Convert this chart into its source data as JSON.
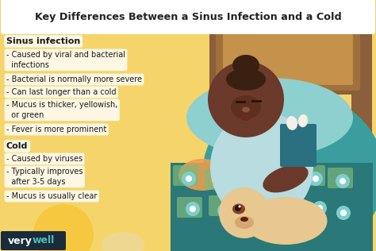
{
  "title": "Key Differences Between a Sinus Infection and a Cold",
  "bg_color": "#F5D46A",
  "title_box_color": "#FFFFFF",
  "title_color": "#222222",
  "section1_header": "Sinus infection",
  "section1_items": [
    "- Caused by viral and bacterial\n  infections",
    "- Bacterial is normally more severe",
    "- Can last longer than a cold",
    "- Mucus is thicker, yellowish,\n  or green",
    "- Fever is more prominent"
  ],
  "section2_header": "Cold",
  "section2_items": [
    "- Caused by viruses",
    "- Typically improves\n  after 3-5 days",
    "- Mucus is usually clear"
  ],
  "footer_text_very": "very",
  "footer_text_well": "well",
  "footer_bg": "#1A2B3C",
  "footer_very_color": "#FFFFFF",
  "footer_well_color": "#4DBCB8",
  "text_color": "#1a1a1a",
  "section_header_color": "#1a1a1a",
  "item_color": "#333333",
  "label_bg": "#FFFFFF",
  "label_alpha": 0.82,
  "headboard_outer": "#8B5E3C",
  "headboard_mid": "#A0713A",
  "headboard_inner": "#C4924A",
  "pillow_color": "#8ECFCF",
  "blanket_teal": "#3A9E9E",
  "blanket_dark": "#2A7878",
  "quilt_pattern": "#4BBCBC",
  "quilt_green": "#7DB87D",
  "quilt_orange": "#E8A050",
  "skin_color": "#6B3A2A",
  "skin_dark": "#4A2010",
  "shirt_color": "#B8DCE0",
  "hair_color": "#3A2010",
  "tissue_box_color": "#2A7080",
  "tissue_white": "#F5F0E8",
  "dog_body": "#E8C890",
  "dog_ear": "#A05028",
  "dog_patch": "#8B4020",
  "flower_color": "#7ECECE",
  "flower_center": "#FFFFFF",
  "yellow_circle": "#F5C840",
  "cream_circle": "#EED890"
}
